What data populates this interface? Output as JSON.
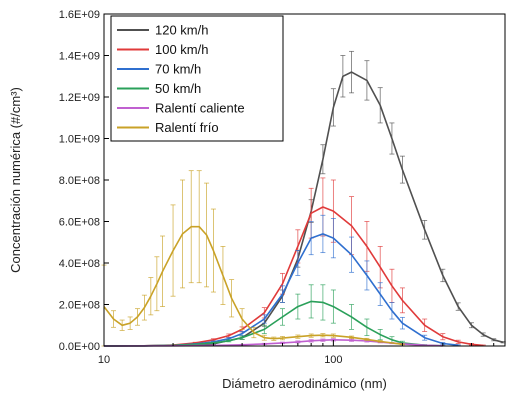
{
  "chart_data": {
    "type": "line",
    "xscale": "log",
    "xlabel": "Diámetro aerodinámico (nm)",
    "ylabel": "Concentración numérica (#/cm³)",
    "xlim": [
      10,
      560
    ],
    "ylim": [
      0,
      1600000000
    ],
    "x_ticks": [
      {
        "value": 10,
        "label": "10"
      },
      {
        "value": 100,
        "label": "100"
      }
    ],
    "y_ticks": [
      {
        "value": 0,
        "label": "0.0E+00"
      },
      {
        "value": 200000000,
        "label": "2.0E+08"
      },
      {
        "value": 400000000,
        "label": "4.0E+08"
      },
      {
        "value": 600000000,
        "label": "6.0E+08"
      },
      {
        "value": 800000000,
        "label": "8.0E+08"
      },
      {
        "value": 1000000000,
        "label": "1.0E+09"
      },
      {
        "value": 1200000000,
        "label": "1.2E+09"
      },
      {
        "value": 1400000000,
        "label": "1.4E+09"
      },
      {
        "value": 1600000000,
        "label": "1.6E+09"
      }
    ],
    "legend_position": "top-left",
    "grid": false,
    "series": [
      {
        "name": "120 km/h",
        "color": "#505050",
        "x": [
          10,
          20,
          30,
          40,
          50,
          60,
          70,
          80,
          90,
          100,
          110,
          120,
          140,
          160,
          180,
          200,
          250,
          300,
          350,
          400,
          450,
          500,
          550
        ],
        "y": [
          0,
          2000000,
          10000000,
          40000000,
          110000000,
          240000000,
          420000000,
          650000000,
          900000000,
          1150000000,
          1300000000,
          1320000000,
          1280000000,
          1160000000,
          1000000000,
          850000000,
          560000000,
          340000000,
          190000000,
          100000000,
          55000000,
          30000000,
          18000000
        ],
        "error": [
          0,
          500000,
          2000000,
          8000000,
          15000000,
          30000000,
          40000000,
          55000000,
          70000000,
          90000000,
          100000000,
          100000000,
          95000000,
          85000000,
          75000000,
          65000000,
          45000000,
          30000000,
          18000000,
          12000000,
          8000000,
          5000000,
          3000000
        ]
      },
      {
        "name": "100 km/h",
        "color": "#e03a3a",
        "x": [
          10,
          15,
          20,
          25,
          30,
          35,
          40,
          50,
          60,
          70,
          80,
          90,
          100,
          120,
          140,
          160,
          180,
          200,
          250,
          300,
          350,
          400,
          450
        ],
        "y": [
          0,
          1000000,
          5000000,
          15000000,
          30000000,
          50000000,
          80000000,
          160000000,
          300000000,
          480000000,
          640000000,
          670000000,
          650000000,
          580000000,
          480000000,
          380000000,
          290000000,
          220000000,
          100000000,
          45000000,
          20000000,
          8000000,
          3000000
        ],
        "error": [
          0,
          500000,
          1000000,
          3000000,
          5000000,
          8000000,
          12000000,
          25000000,
          50000000,
          80000000,
          120000000,
          140000000,
          150000000,
          140000000,
          120000000,
          100000000,
          80000000,
          60000000,
          30000000,
          15000000,
          8000000,
          4000000,
          2000000
        ]
      },
      {
        "name": "70 km/h",
        "color": "#2f6fcf",
        "x": [
          10,
          15,
          20,
          25,
          30,
          35,
          40,
          50,
          60,
          70,
          80,
          90,
          100,
          120,
          140,
          160,
          180,
          200,
          250,
          300,
          350
        ],
        "y": [
          0,
          1000000,
          3000000,
          10000000,
          20000000,
          35000000,
          60000000,
          130000000,
          250000000,
          400000000,
          520000000,
          540000000,
          520000000,
          440000000,
          340000000,
          250000000,
          170000000,
          110000000,
          40000000,
          12000000,
          4000000
        ],
        "error": [
          0,
          500000,
          1000000,
          2000000,
          4000000,
          6000000,
          10000000,
          20000000,
          40000000,
          60000000,
          80000000,
          90000000,
          95000000,
          85000000,
          70000000,
          55000000,
          40000000,
          28000000,
          12000000,
          5000000,
          2000000
        ]
      },
      {
        "name": "50 km/h",
        "color": "#2aa05a",
        "x": [
          10,
          15,
          20,
          25,
          30,
          35,
          40,
          50,
          60,
          70,
          80,
          90,
          100,
          120,
          140,
          160,
          180,
          200,
          250,
          300
        ],
        "y": [
          0,
          1000000,
          3000000,
          8000000,
          15000000,
          25000000,
          40000000,
          80000000,
          140000000,
          190000000,
          215000000,
          210000000,
          190000000,
          140000000,
          90000000,
          55000000,
          30000000,
          15000000,
          4000000,
          1000000
        ],
        "error": [
          0,
          500000,
          1000000,
          2000000,
          3000000,
          5000000,
          8000000,
          20000000,
          40000000,
          60000000,
          80000000,
          85000000,
          80000000,
          60000000,
          40000000,
          25000000,
          15000000,
          8000000,
          3000000,
          1000000
        ]
      },
      {
        "name": "Ralentí caliente",
        "color": "#c060d0",
        "x": [
          10,
          20,
          30,
          40,
          50,
          60,
          70,
          80,
          90,
          100,
          120,
          140,
          160,
          180,
          200,
          250,
          300
        ],
        "y": [
          0,
          1000000,
          3000000,
          6000000,
          10000000,
          15000000,
          20000000,
          25000000,
          28000000,
          30000000,
          28000000,
          24000000,
          19000000,
          14000000,
          10000000,
          4000000,
          1000000
        ],
        "error": [
          0,
          500000,
          1000000,
          2000000,
          3000000,
          4000000,
          5000000,
          6000000,
          6000000,
          6000000,
          6000000,
          5000000,
          4000000,
          3000000,
          2000000,
          1000000,
          500000
        ]
      },
      {
        "name": "Ralentí frío",
        "color": "#c9a227",
        "x": [
          10,
          11,
          12,
          13,
          14,
          15,
          16,
          17,
          18,
          20,
          22,
          24,
          26,
          28,
          30,
          33,
          36,
          40,
          45,
          50,
          55,
          60,
          70,
          80,
          90,
          100,
          120,
          140,
          160,
          200
        ],
        "y": [
          190000000,
          130000000,
          100000000,
          110000000,
          140000000,
          185000000,
          240000000,
          300000000,
          360000000,
          460000000,
          540000000,
          575000000,
          575000000,
          535000000,
          460000000,
          340000000,
          230000000,
          130000000,
          65000000,
          40000000,
          35000000,
          38000000,
          45000000,
          50000000,
          52000000,
          50000000,
          42000000,
          32000000,
          22000000,
          8000000
        ],
        "error": [
          200000000,
          40000000,
          25000000,
          30000000,
          40000000,
          60000000,
          90000000,
          130000000,
          170000000,
          220000000,
          260000000,
          270000000,
          270000000,
          250000000,
          200000000,
          140000000,
          90000000,
          50000000,
          25000000,
          12000000,
          8000000,
          8000000,
          8000000,
          8000000,
          8000000,
          8000000,
          6000000,
          5000000,
          4000000,
          2000000
        ]
      }
    ]
  }
}
